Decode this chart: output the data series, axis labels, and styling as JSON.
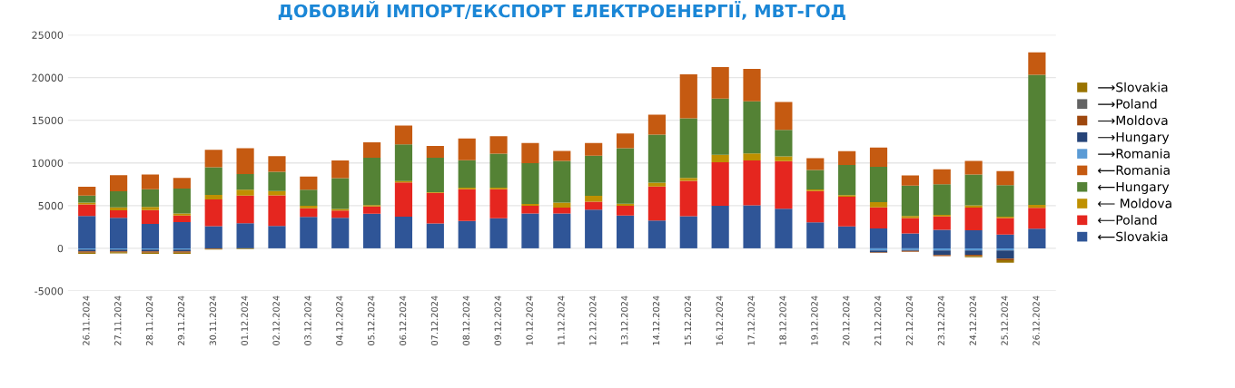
{
  "chart_data": {
    "type": "bar",
    "title": "ДОБОВИЙ ІМПОРТ/ЕКСПОРТ ЕЛЕКТРОЕНЕРГІЇ, МВТ-ГОД",
    "stacked": true,
    "categories": [
      "26.11.2024",
      "27.11.2024",
      "28.11.2024",
      "29.11.2024",
      "30.11.2024",
      "01.12.2024",
      "02.12.2024",
      "03.12.2024",
      "04.12.2024",
      "05.12.2024",
      "06.12.2024",
      "07.12.2024",
      "08.12.2024",
      "09.12.2024",
      "10.12.2024",
      "11.12.2024",
      "12.12.2024",
      "13.12.2024",
      "14.12.2024",
      "15.12.2024",
      "16.12.2024",
      "17.12.2024",
      "18.12.2024",
      "19.12.2024",
      "20.12.2024",
      "21.12.2024",
      "22.12.2024",
      "23.12.2024",
      "24.12.2024",
      "25.12.2024",
      "26.12.2024"
    ],
    "series": [
      {
        "name": "⟵Slovakia",
        "color": "#2f5597",
        "values": [
          3800,
          3580,
          2850,
          3070,
          2590,
          2940,
          2630,
          3670,
          3580,
          4050,
          3700,
          2910,
          3200,
          3510,
          4080,
          4080,
          4530,
          3830,
          3260,
          3770,
          4970,
          5030,
          4650,
          3040,
          2560,
          2340,
          1740,
          2180,
          2120,
          1610,
          2310
        ]
      },
      {
        "name": "⟵Poland",
        "color": "#e5261f",
        "values": [
          1330,
          880,
          1640,
          760,
          3140,
          3230,
          3570,
          1010,
          850,
          860,
          4020,
          3580,
          3730,
          3420,
          890,
          700,
          940,
          1140,
          3990,
          4140,
          5120,
          5250,
          5570,
          3670,
          3480,
          2470,
          1800,
          1550,
          2660,
          1930,
          2440
        ]
      },
      {
        "name": "⟵ Moldova",
        "color": "#bf9000",
        "values": [
          220,
          350,
          350,
          250,
          540,
          700,
          510,
          290,
          190,
          150,
          160,
          90,
          190,
          190,
          220,
          570,
          670,
          250,
          440,
          350,
          860,
          830,
          540,
          190,
          190,
          600,
          260,
          190,
          250,
          160,
          340
        ]
      },
      {
        "name": "⟵Hungary",
        "color": "#548235",
        "values": [
          820,
          1870,
          2090,
          2910,
          3220,
          1830,
          2250,
          1900,
          3610,
          5540,
          4300,
          4020,
          3200,
          3960,
          4780,
          4900,
          4710,
          6520,
          5630,
          6960,
          6580,
          6110,
          3130,
          2280,
          3520,
          4150,
          3540,
          3580,
          3610,
          3710,
          15230
        ]
      },
      {
        "name": "⟵Romania",
        "color": "#c55a11",
        "values": [
          1050,
          1900,
          1710,
          1270,
          2060,
          3040,
          1830,
          1550,
          2050,
          1810,
          2190,
          1390,
          2560,
          2050,
          2370,
          1170,
          1490,
          1710,
          2340,
          5160,
          3700,
          3790,
          3260,
          1390,
          1640,
          2240,
          1200,
          1770,
          1610,
          1640,
          2650
        ]
      },
      {
        "name": "⟶Romania",
        "color": "#5b9bd5",
        "values": [
          -150,
          -150,
          -150,
          -150,
          0,
          0,
          0,
          0,
          0,
          0,
          0,
          0,
          0,
          0,
          0,
          0,
          0,
          0,
          0,
          0,
          0,
          0,
          0,
          0,
          0,
          -250,
          -200,
          -250,
          -250,
          -250,
          0
        ]
      },
      {
        "name": "⟶Hungary",
        "color": "#264478",
        "values": [
          -200,
          -200,
          -200,
          -200,
          0,
          0,
          0,
          0,
          0,
          0,
          0,
          0,
          0,
          0,
          0,
          0,
          0,
          0,
          0,
          0,
          0,
          0,
          0,
          0,
          0,
          -220,
          -100,
          -540,
          -500,
          -950,
          0
        ]
      },
      {
        "name": "⟶Moldova",
        "color": "#9e480e",
        "values": [
          -150,
          -100,
          -150,
          -150,
          -80,
          0,
          0,
          0,
          0,
          0,
          0,
          0,
          0,
          0,
          0,
          0,
          0,
          0,
          0,
          0,
          0,
          0,
          0,
          0,
          0,
          -60,
          -100,
          -130,
          -150,
          -190,
          0
        ]
      },
      {
        "name": "⟶Poland",
        "color": "#636363",
        "values": [
          0,
          0,
          0,
          0,
          0,
          0,
          0,
          0,
          0,
          0,
          0,
          0,
          0,
          0,
          0,
          0,
          0,
          0,
          0,
          0,
          0,
          0,
          0,
          0,
          0,
          0,
          0,
          0,
          0,
          0,
          0
        ]
      },
      {
        "name": "⟶Slovakia",
        "color": "#997300",
        "values": [
          -150,
          -150,
          -150,
          -150,
          -70,
          -80,
          0,
          0,
          0,
          0,
          0,
          0,
          0,
          0,
          0,
          0,
          0,
          0,
          0,
          0,
          0,
          0,
          0,
          0,
          0,
          0,
          null,
          0,
          -140,
          -290,
          null
        ]
      }
    ],
    "ylim": [
      -5000,
      25000
    ],
    "yticks": [
      -5000,
      0,
      5000,
      10000,
      15000,
      20000,
      25000
    ],
    "grid": "y",
    "legend": "right"
  }
}
